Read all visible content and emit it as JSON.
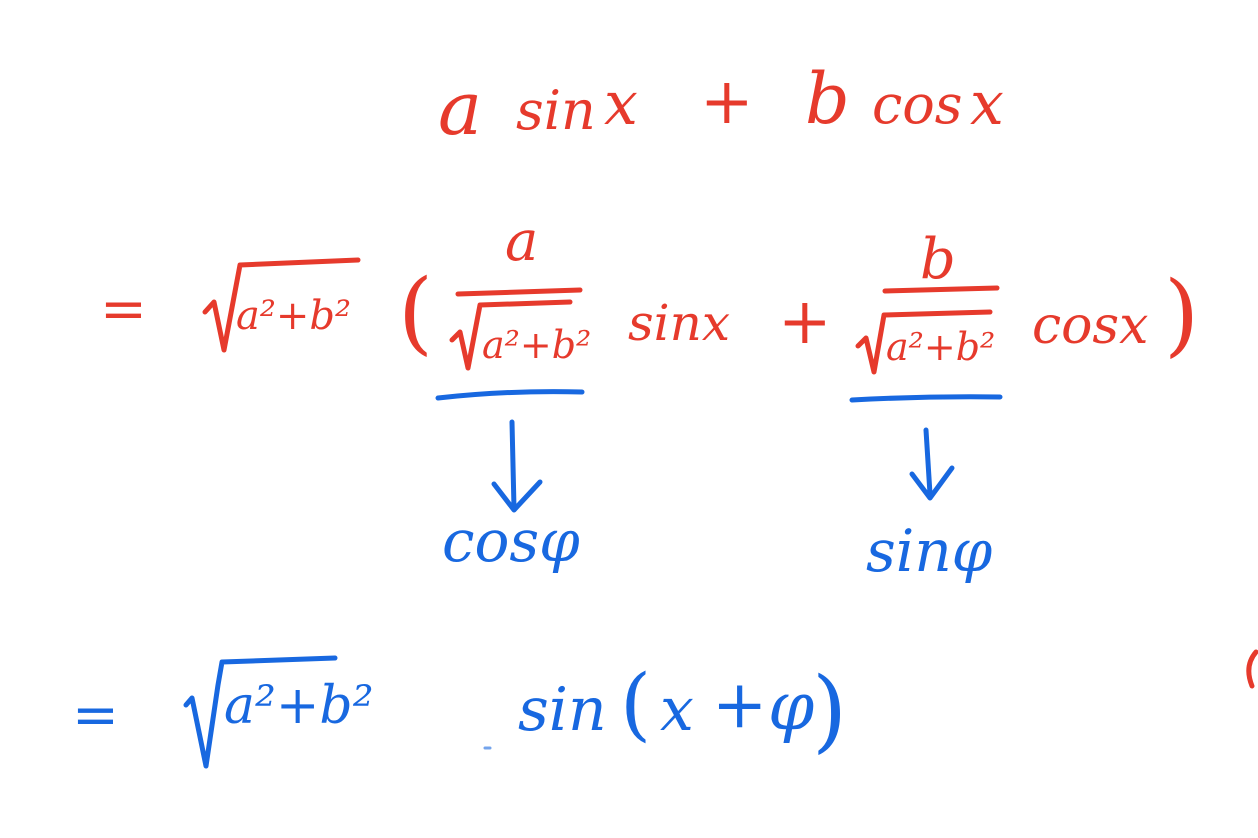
{
  "whiteboard": {
    "ink_colors": {
      "red": "#e63a2c",
      "blue": "#1868e0",
      "background": "#ffffff"
    },
    "line1": {
      "a": "a",
      "sin": "sin",
      "x": "x",
      "plus": "+",
      "b": "b",
      "cos": "cos",
      "x2": "x"
    },
    "line2": {
      "eq": "=",
      "sqrt_body": "a²+b²",
      "lparen": "(",
      "frac1_num": "a",
      "frac1_den": "a²+b²",
      "sinx": "sinx",
      "plus": "+",
      "frac2_num": "b",
      "frac2_den": "a²+b²",
      "cosx": "cosx",
      "rparen": ")"
    },
    "annot": {
      "cos_phi": "cosφ",
      "sin_phi": "sinφ"
    },
    "line3": {
      "eq": "=",
      "sqrt_body": "a²+b²",
      "sin": "sin",
      "lparen": "(",
      "x": "x",
      "plus": "+",
      "phi": "φ",
      "rparen": ")"
    }
  }
}
